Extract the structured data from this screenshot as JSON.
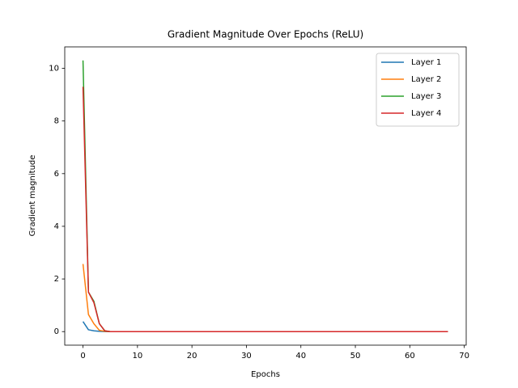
{
  "chart_data": {
    "type": "line",
    "title": "Gradient Magnitude Over Epochs (ReLU)",
    "x_label": "Epochs",
    "y_label": "Gradient magnitude",
    "x": [
      0,
      1,
      2,
      3,
      4,
      5,
      6,
      7,
      8,
      9,
      10,
      11,
      12,
      13,
      14,
      15,
      16,
      17,
      18,
      19,
      20,
      21,
      22,
      23,
      24,
      25,
      26,
      27,
      28,
      29,
      30,
      31,
      32,
      33,
      34,
      35,
      36,
      37,
      38,
      39,
      40,
      41,
      42,
      43,
      44,
      45,
      46,
      47,
      48,
      49,
      50,
      51,
      52,
      53,
      54,
      55,
      56,
      57,
      58,
      59,
      60,
      61,
      62,
      63,
      64,
      65,
      66,
      67
    ],
    "series": [
      {
        "name": "Layer 1",
        "color": "#1f77b4",
        "values": [
          0.38,
          0.07,
          0.03,
          0.01,
          0,
          0,
          0,
          0,
          0,
          0,
          0,
          0,
          0,
          0,
          0,
          0,
          0,
          0,
          0,
          0,
          0,
          0,
          0,
          0,
          0,
          0,
          0,
          0,
          0,
          0,
          0,
          0,
          0,
          0,
          0,
          0,
          0,
          0,
          0,
          0,
          0,
          0,
          0,
          0,
          0,
          0,
          0,
          0,
          0,
          0,
          0,
          0,
          0,
          0,
          0,
          0,
          0,
          0,
          0,
          0,
          0,
          0,
          0,
          0,
          0,
          0,
          0,
          0
        ]
      },
      {
        "name": "Layer 2",
        "color": "#ff7f0e",
        "values": [
          2.57,
          0.65,
          0.3,
          0.05,
          0.01,
          0,
          0,
          0,
          0,
          0,
          0,
          0,
          0,
          0,
          0,
          0,
          0,
          0,
          0,
          0,
          0,
          0,
          0,
          0,
          0,
          0,
          0,
          0,
          0,
          0,
          0,
          0,
          0,
          0,
          0,
          0,
          0,
          0,
          0,
          0,
          0,
          0,
          0,
          0,
          0,
          0,
          0,
          0,
          0,
          0,
          0,
          0,
          0,
          0,
          0,
          0,
          0,
          0,
          0,
          0,
          0,
          0,
          0,
          0,
          0,
          0,
          0,
          0
        ]
      },
      {
        "name": "Layer 3",
        "color": "#2ca02c",
        "values": [
          10.3,
          1.5,
          1.15,
          0.3,
          0.03,
          0,
          0,
          0,
          0,
          0,
          0,
          0,
          0,
          0,
          0,
          0,
          0,
          0,
          0,
          0,
          0,
          0,
          0,
          0,
          0,
          0,
          0,
          0,
          0,
          0,
          0,
          0,
          0,
          0,
          0,
          0,
          0,
          0,
          0,
          0,
          0,
          0,
          0,
          0,
          0,
          0,
          0,
          0,
          0,
          0,
          0,
          0,
          0,
          0,
          0,
          0,
          0,
          0,
          0,
          0,
          0,
          0,
          0,
          0,
          0,
          0,
          0,
          0
        ]
      },
      {
        "name": "Layer 4",
        "color": "#d62728",
        "values": [
          9.3,
          1.5,
          1.1,
          0.3,
          0.03,
          0,
          0,
          0,
          0,
          0,
          0,
          0,
          0,
          0,
          0,
          0,
          0,
          0,
          0,
          0,
          0,
          0,
          0,
          0,
          0,
          0,
          0,
          0,
          0,
          0,
          0,
          0,
          0,
          0,
          0,
          0,
          0,
          0,
          0,
          0,
          0,
          0,
          0,
          0,
          0,
          0,
          0,
          0,
          0,
          0,
          0,
          0,
          0,
          0,
          0,
          0,
          0,
          0,
          0,
          0,
          0,
          0,
          0,
          0,
          0,
          0,
          0,
          0
        ]
      }
    ],
    "xlim": [
      -3.35,
      70.35
    ],
    "xticks": [
      0,
      10,
      20,
      30,
      40,
      50,
      60,
      70
    ],
    "ylim": [
      -0.515,
      10.815
    ],
    "yticks": [
      0,
      2,
      4,
      6,
      8,
      10
    ],
    "grid": false,
    "legend": "upper right"
  }
}
